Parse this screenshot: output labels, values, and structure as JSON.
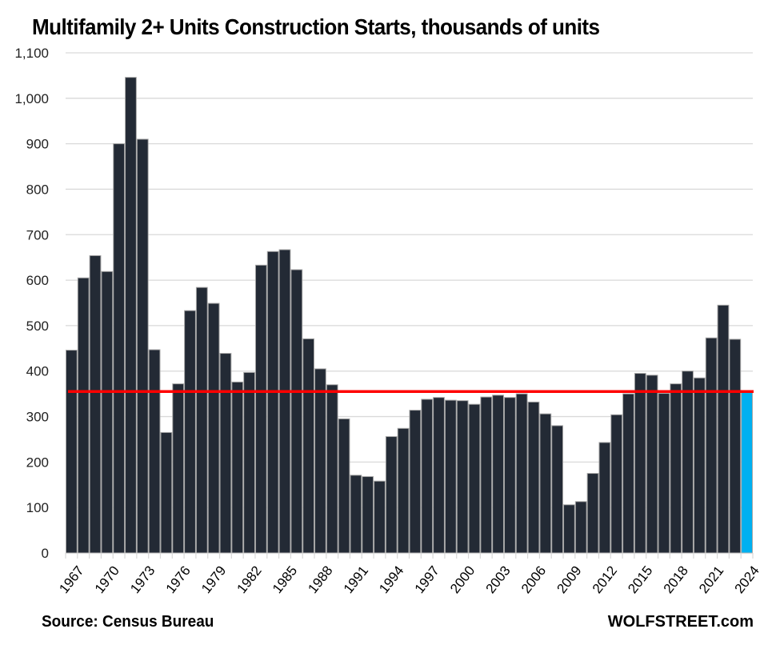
{
  "chart_data": {
    "type": "bar",
    "title": "Multifamily 2+ Units Construction Starts, thousands of units",
    "xlabel": "",
    "ylabel": "",
    "ylim": [
      0,
      1100
    ],
    "yticks": [
      0,
      100,
      200,
      300,
      400,
      500,
      600,
      700,
      800,
      900,
      1000,
      1100
    ],
    "ytick_labels": [
      "0",
      "100",
      "200",
      "300",
      "400",
      "500",
      "600",
      "700",
      "800",
      "900",
      "1,000",
      "1,100"
    ],
    "grid": true,
    "categories": [
      "1967",
      "1968",
      "1969",
      "1970",
      "1971",
      "1972",
      "1973",
      "1974",
      "1975",
      "1976",
      "1977",
      "1978",
      "1979",
      "1980",
      "1981",
      "1982",
      "1983",
      "1984",
      "1985",
      "1986",
      "1987",
      "1988",
      "1989",
      "1990",
      "1991",
      "1992",
      "1993",
      "1994",
      "1995",
      "1996",
      "1997",
      "1998",
      "1999",
      "2000",
      "2001",
      "2002",
      "2003",
      "2004",
      "2005",
      "2006",
      "2007",
      "2008",
      "2009",
      "2010",
      "2011",
      "2012",
      "2013",
      "2014",
      "2015",
      "2016",
      "2017",
      "2018",
      "2019",
      "2020",
      "2021",
      "2022",
      "2023",
      "2024"
    ],
    "xtick_labels": [
      "1967",
      "1970",
      "1973",
      "1976",
      "1979",
      "1982",
      "1985",
      "1988",
      "1991",
      "1994",
      "1997",
      "2000",
      "2003",
      "2006",
      "2009",
      "2012",
      "2015",
      "2018",
      "2021",
      "2024"
    ],
    "series": [
      {
        "name": "Multifamily 2+ units starts",
        "values": [
          446,
          605,
          654,
          619,
          900,
          1046,
          910,
          447,
          265,
          372,
          533,
          584,
          549,
          439,
          376,
          397,
          633,
          663,
          667,
          623,
          471,
          405,
          370,
          295,
          171,
          168,
          158,
          256,
          274,
          314,
          338,
          342,
          336,
          335,
          327,
          343,
          347,
          342,
          350,
          332,
          306,
          280,
          106,
          113,
          175,
          243,
          304,
          350,
          395,
          391,
          351,
          372,
          400,
          385,
          473,
          545,
          470,
          355
        ],
        "color": "#232a35",
        "highlight": {
          "category": "2024",
          "color": "#00b0f0"
        }
      }
    ],
    "reference_line": {
      "value": 355,
      "color": "#ff0000",
      "label": ""
    }
  },
  "footer": {
    "source": "Source: Census Bureau",
    "brand": "WOLFSTREET.com"
  }
}
